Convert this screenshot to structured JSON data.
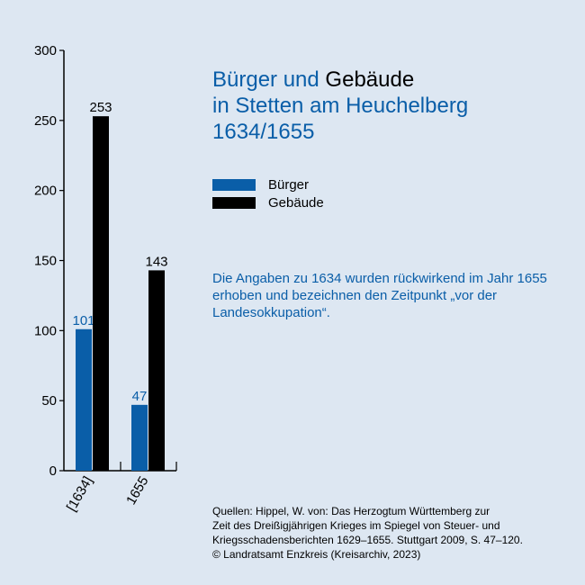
{
  "title": {
    "part1": "Bürger und ",
    "part2": "Gebäude",
    "line2": "in Stetten am Heuchelberg",
    "line3": "1634/1655"
  },
  "legend": [
    {
      "label": "Bürger",
      "color": "#0a5ea8"
    },
    {
      "label": "Gebäude",
      "color": "#000000"
    }
  ],
  "note": "Die Angaben zu 1634 wurden rückwirkend im Jahr 1655 erhoben und bezeichnen den Zeitpunkt „vor der Landesokkupation“.",
  "source": {
    "line1": "Quellen: Hippel, W. von: Das Herzogtum Württemberg zur",
    "line2": "Zeit des Dreißigjährigen Krieges im Spiegel von Steuer- und",
    "line3": "Kriegsschadensberichten 1629–1655. Stuttgart 2009, S. 47–120.",
    "line4": "© Landratsamt Enzkreis (Kreisarchiv, 2023)"
  },
  "chart_data": {
    "type": "bar",
    "categories": [
      "[1634]",
      "1655"
    ],
    "series": [
      {
        "name": "Bürger",
        "values": [
          101,
          47
        ],
        "color": "#0a5ea8"
      },
      {
        "name": "Gebäude",
        "values": [
          253,
          143
        ],
        "color": "#000000"
      }
    ],
    "ylim": [
      0,
      300
    ],
    "yticks": [
      0,
      50,
      100,
      150,
      200,
      250,
      300
    ],
    "grid": false,
    "legend_position": "right"
  }
}
